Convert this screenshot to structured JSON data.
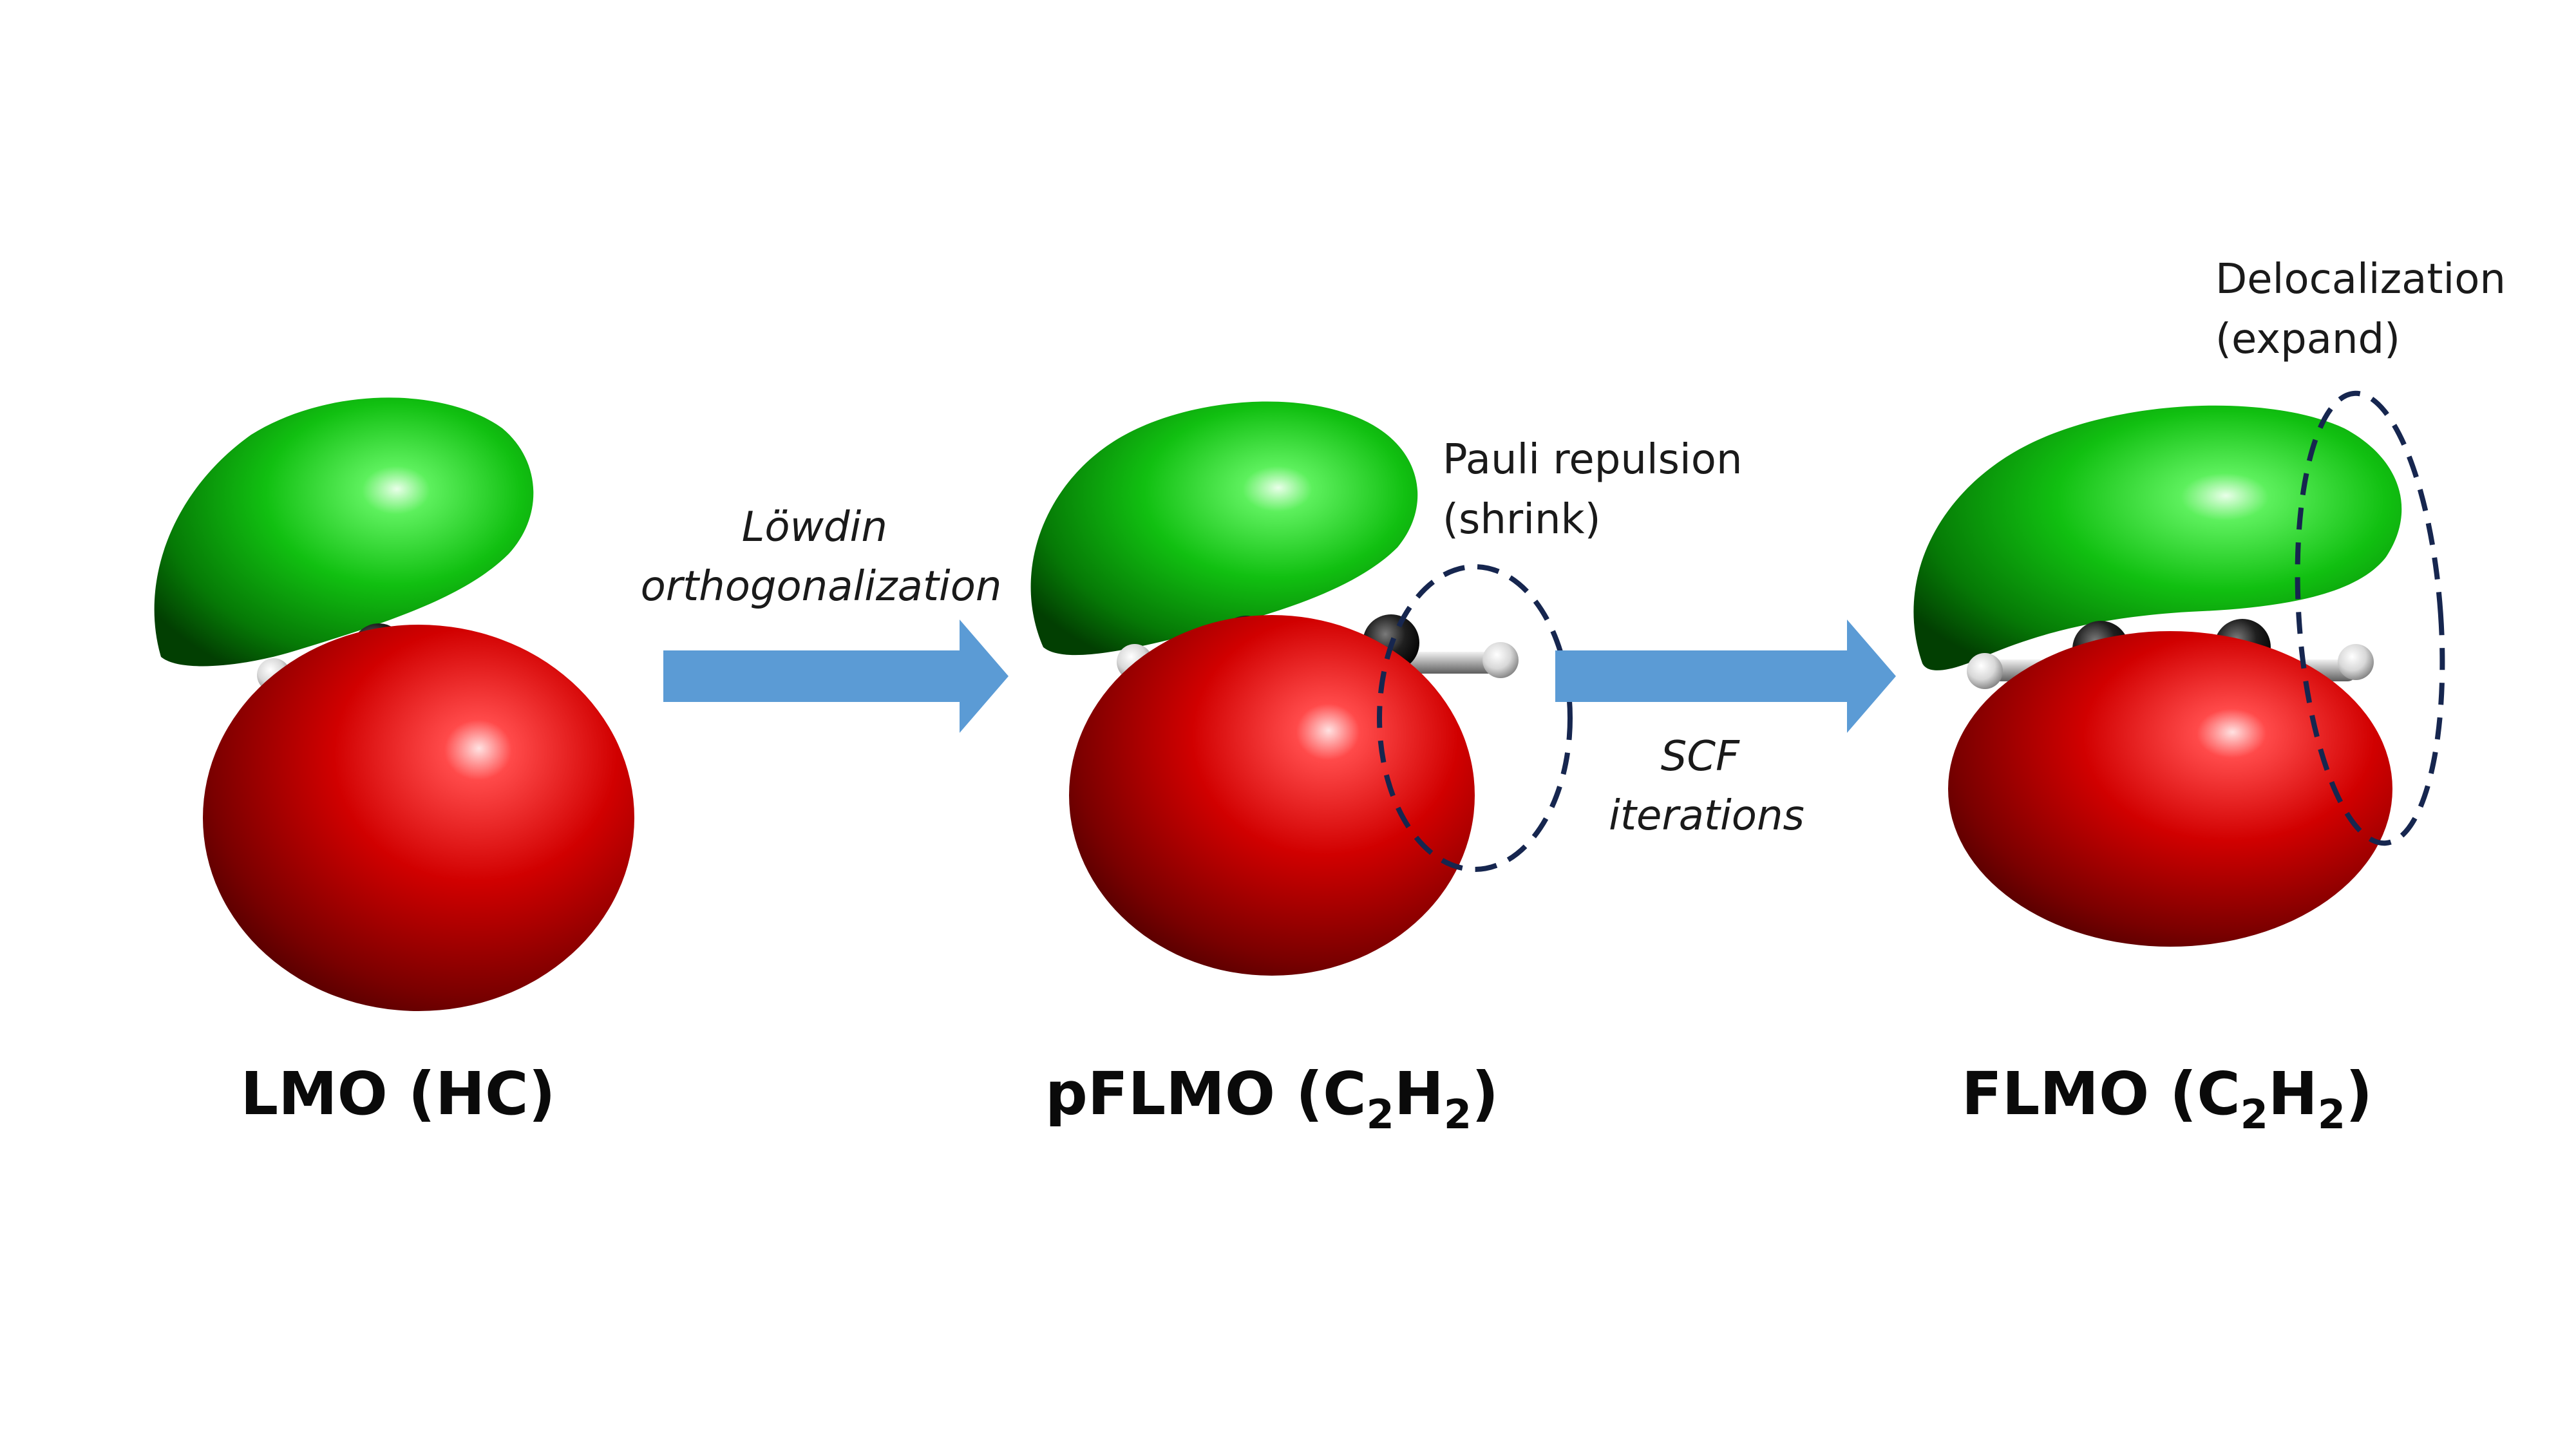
{
  "colors": {
    "lobe_positive": "#00c400",
    "lobe_negative": "#d40000",
    "arrow": "#5b9bd5",
    "dashed_outline": "#16264f",
    "atom_carbon": "#1a1a1a",
    "atom_hydrogen": "#e6e6e6"
  },
  "panels": [
    {
      "title_main": "LMO (HC)",
      "title_parts": []
    },
    {
      "title_parts": [
        "pFLMO (C",
        "2",
        "H",
        "2",
        ")"
      ]
    },
    {
      "title_parts": [
        "FLMO (C",
        "2",
        "H",
        "2",
        ")"
      ]
    }
  ],
  "steps": [
    {
      "line1": "Löwdin",
      "line2": "orthogonalization"
    },
    {
      "line1": "SCF",
      "line2": "iterations"
    }
  ],
  "annotations": [
    {
      "line1": "Pauli repulsion",
      "line2": "(shrink)"
    },
    {
      "line1": "Delocalization",
      "line2": "(expand)"
    }
  ]
}
